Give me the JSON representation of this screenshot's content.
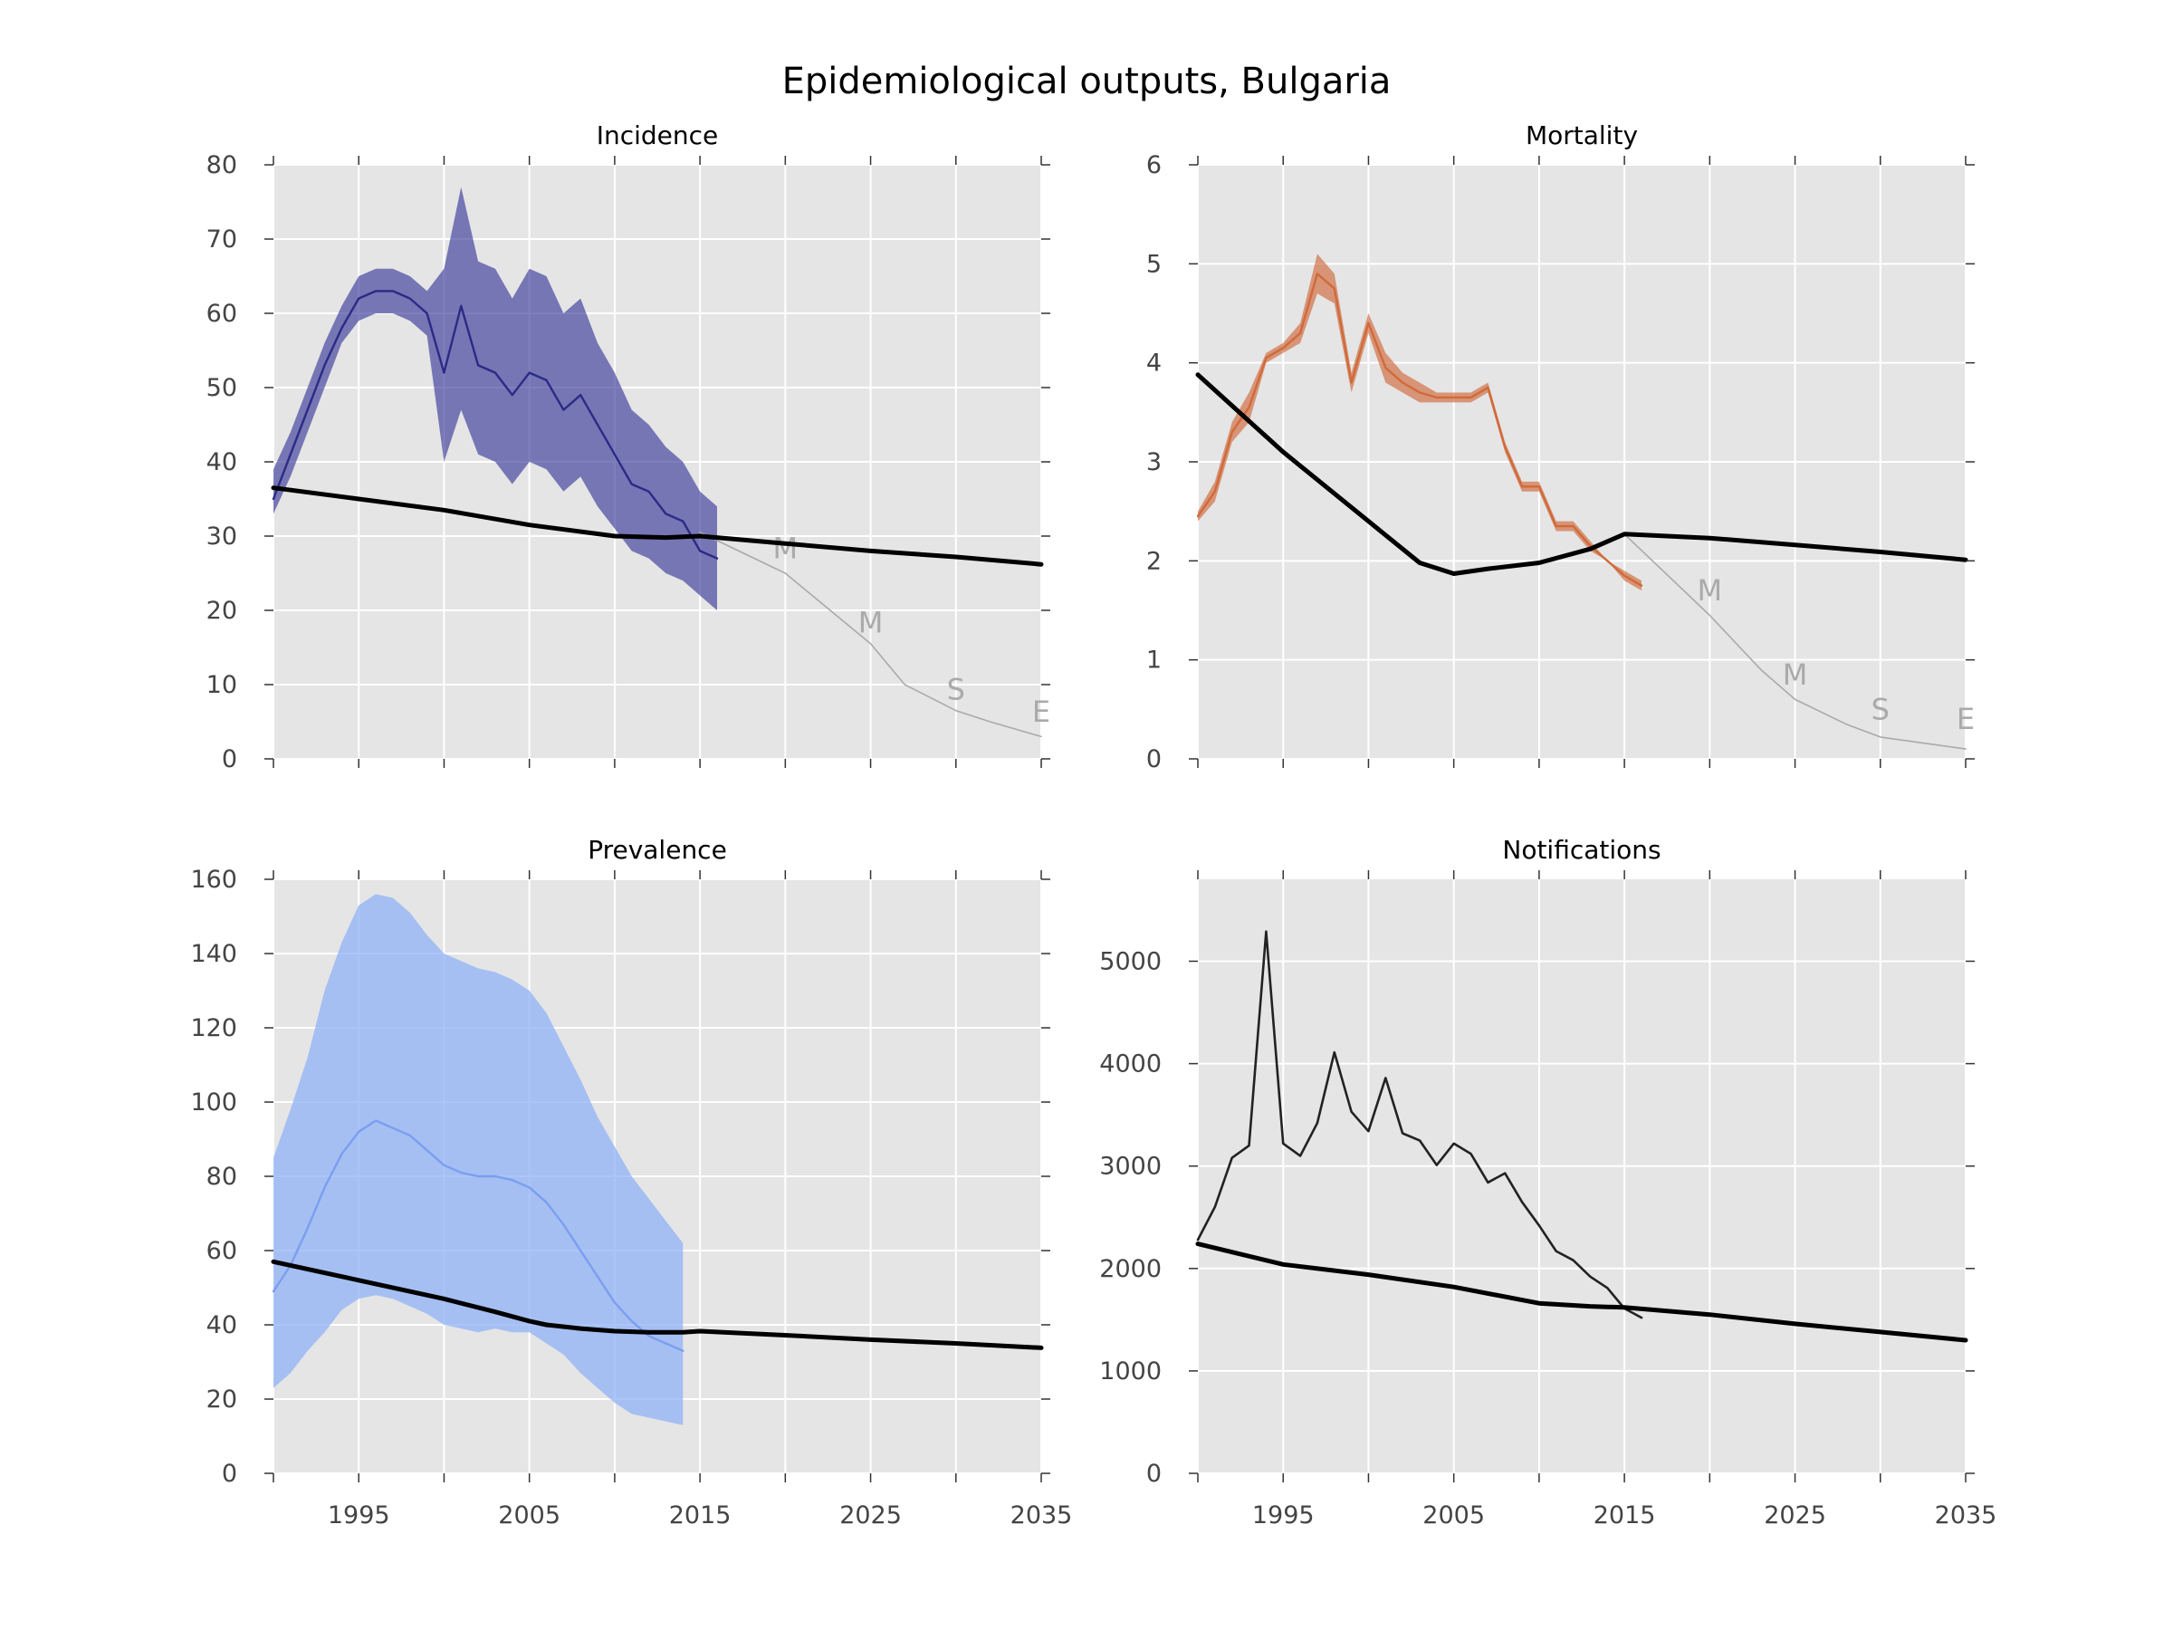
{
  "figure_title": "Epidemiological outputs, Bulgaria",
  "chart_data": [
    {
      "type": "line",
      "title": "Incidence",
      "xlim": [
        1990,
        2035
      ],
      "ylim": [
        0,
        80
      ],
      "xticks": [
        1990,
        1995,
        2000,
        2005,
        2010,
        2015,
        2020,
        2025,
        2030,
        2035
      ],
      "xtick_labels": [],
      "yticks": [
        0,
        10,
        20,
        30,
        40,
        50,
        60,
        70,
        80
      ],
      "ytick_labels": [
        "0",
        "10",
        "20",
        "30",
        "40",
        "50",
        "60",
        "70",
        "80"
      ],
      "grid": true,
      "background": "#e5e5e5",
      "colors": {
        "band": "#3b3b9b",
        "observed": "#2b2b85",
        "model": "#000000",
        "target": "#aaaaaa"
      },
      "band": {
        "x": [
          1990,
          1991,
          1992,
          1993,
          1994,
          1995,
          1996,
          1997,
          1998,
          1999,
          2000,
          2001,
          2002,
          2003,
          2004,
          2005,
          2006,
          2007,
          2008,
          2009,
          2010,
          2011,
          2012,
          2013,
          2014,
          2015,
          2016
        ],
        "low": [
          33,
          38,
          44,
          50,
          56,
          59,
          60,
          60,
          59,
          57,
          40,
          47,
          41,
          40,
          37,
          40,
          39,
          36,
          38,
          34,
          31,
          28,
          27,
          25,
          24,
          22,
          20
        ],
        "high": [
          39,
          44,
          50,
          56,
          61,
          65,
          66,
          66,
          65,
          63,
          66,
          77,
          67,
          66,
          62,
          66,
          65,
          60,
          62,
          56,
          52,
          47,
          45,
          42,
          40,
          36,
          34
        ]
      },
      "observed": {
        "x": [
          1990,
          1991,
          1992,
          1993,
          1994,
          1995,
          1996,
          1997,
          1998,
          1999,
          2000,
          2001,
          2002,
          2003,
          2004,
          2005,
          2006,
          2007,
          2008,
          2009,
          2010,
          2011,
          2012,
          2013,
          2014,
          2015,
          2016
        ],
        "y": [
          35,
          41,
          47,
          53,
          58,
          62,
          63,
          63,
          62,
          60,
          52,
          61,
          53,
          52,
          49,
          52,
          51,
          47,
          49,
          45,
          41,
          37,
          36,
          33,
          32,
          28,
          27
        ]
      },
      "model": {
        "x": [
          1990,
          1995,
          2000,
          2005,
          2010,
          2013,
          2015,
          2020,
          2025,
          2030,
          2035
        ],
        "y": [
          36.5,
          35,
          33.5,
          31.5,
          30,
          29.8,
          30,
          29,
          28,
          27.2,
          26.2
        ]
      },
      "target": {
        "x": [
          2015,
          2020,
          2025,
          2027,
          2030,
          2032,
          2035
        ],
        "y": [
          30.5,
          25,
          15.5,
          10,
          6.5,
          5,
          3
        ]
      },
      "milestones": [
        {
          "label": "M",
          "x": 2020,
          "y": 27
        },
        {
          "label": "M",
          "x": 2025,
          "y": 17
        },
        {
          "label": "S",
          "x": 2030,
          "y": 8
        },
        {
          "label": "E",
          "x": 2035,
          "y": 5
        }
      ]
    },
    {
      "type": "line",
      "title": "Mortality",
      "xlim": [
        1990,
        2035
      ],
      "ylim": [
        0,
        6
      ],
      "xticks": [
        1990,
        1995,
        2000,
        2005,
        2010,
        2015,
        2020,
        2025,
        2030,
        2035
      ],
      "xtick_labels": [],
      "yticks": [
        0,
        1,
        2,
        3,
        4,
        5,
        6
      ],
      "ytick_labels": [
        "0",
        "1",
        "2",
        "3",
        "4",
        "5",
        "6"
      ],
      "grid": true,
      "background": "#e5e5e5",
      "colors": {
        "band": "#d0683a",
        "observed": "#d06a3a",
        "model": "#000000",
        "target": "#aaaaaa"
      },
      "band": {
        "x": [
          1990,
          1991,
          1992,
          1993,
          1994,
          1995,
          1996,
          1997,
          1998,
          1999,
          2000,
          2001,
          2002,
          2003,
          2004,
          2005,
          2006,
          2007,
          2008,
          2009,
          2010,
          2011,
          2012,
          2013,
          2014,
          2015,
          2016
        ],
        "low": [
          2.4,
          2.6,
          3.2,
          3.4,
          4.0,
          4.1,
          4.2,
          4.7,
          4.6,
          3.7,
          4.3,
          3.8,
          3.7,
          3.6,
          3.6,
          3.6,
          3.6,
          3.7,
          3.1,
          2.7,
          2.7,
          2.3,
          2.3,
          2.1,
          2.0,
          1.8,
          1.7
        ],
        "high": [
          2.5,
          2.8,
          3.4,
          3.7,
          4.1,
          4.2,
          4.4,
          5.1,
          4.9,
          3.9,
          4.5,
          4.1,
          3.9,
          3.8,
          3.7,
          3.7,
          3.7,
          3.8,
          3.2,
          2.8,
          2.8,
          2.4,
          2.4,
          2.2,
          2.0,
          1.9,
          1.8
        ]
      },
      "observed": {
        "x": [
          1990,
          1991,
          1992,
          1993,
          1994,
          1995,
          1996,
          1997,
          1998,
          1999,
          2000,
          2001,
          2002,
          2003,
          2004,
          2005,
          2006,
          2007,
          2008,
          2009,
          2010,
          2011,
          2012,
          2013,
          2014,
          2015,
          2016
        ],
        "y": [
          2.45,
          2.7,
          3.3,
          3.55,
          4.05,
          4.15,
          4.3,
          4.9,
          4.75,
          3.8,
          4.4,
          3.95,
          3.8,
          3.7,
          3.65,
          3.65,
          3.65,
          3.75,
          3.15,
          2.75,
          2.75,
          2.35,
          2.35,
          2.15,
          2.0,
          1.85,
          1.75
        ]
      },
      "model": {
        "x": [
          1990,
          1995,
          2000,
          2003,
          2005,
          2007,
          2010,
          2013,
          2015,
          2020,
          2025,
          2030,
          2035
        ],
        "y": [
          3.88,
          3.1,
          2.4,
          1.98,
          1.87,
          1.92,
          1.98,
          2.12,
          2.27,
          2.23,
          2.16,
          2.09,
          2.01
        ]
      },
      "target": {
        "x": [
          2015,
          2020,
          2023,
          2025,
          2028,
          2030,
          2035
        ],
        "y": [
          2.27,
          1.45,
          0.9,
          0.6,
          0.35,
          0.22,
          0.1
        ]
      },
      "milestones": [
        {
          "label": "M",
          "x": 2020,
          "y": 1.6
        },
        {
          "label": "M",
          "x": 2025,
          "y": 0.75
        },
        {
          "label": "S",
          "x": 2030,
          "y": 0.4
        },
        {
          "label": "E",
          "x": 2035,
          "y": 0.3
        }
      ]
    },
    {
      "type": "line",
      "title": "Prevalence",
      "xlim": [
        1990,
        2035
      ],
      "ylim": [
        0,
        160
      ],
      "xticks": [
        1990,
        1995,
        2000,
        2005,
        2010,
        2015,
        2020,
        2025,
        2030,
        2035
      ],
      "xtick_labels": [
        "",
        "1995",
        "",
        "2005",
        "",
        "2015",
        "",
        "2025",
        "",
        "2035"
      ],
      "yticks": [
        0,
        20,
        40,
        60,
        80,
        100,
        120,
        140,
        160
      ],
      "ytick_labels": [
        "0",
        "20",
        "40",
        "60",
        "80",
        "100",
        "120",
        "140",
        "160"
      ],
      "grid": true,
      "background": "#e5e5e5",
      "colors": {
        "band": "#8fb1f5",
        "observed": "#7b9ef0",
        "model": "#000000"
      },
      "band": {
        "x": [
          1990,
          1991,
          1992,
          1993,
          1994,
          1995,
          1996,
          1997,
          1998,
          1999,
          2000,
          2001,
          2002,
          2003,
          2004,
          2005,
          2006,
          2007,
          2008,
          2009,
          2010,
          2011,
          2012,
          2013,
          2014
        ],
        "low": [
          23,
          27,
          33,
          38,
          44,
          47,
          48,
          47,
          45,
          43,
          40,
          39,
          38,
          39,
          38,
          38,
          35,
          32,
          27,
          23,
          19,
          16,
          15,
          14,
          13
        ],
        "high": [
          85,
          98,
          112,
          130,
          143,
          153,
          156,
          155,
          151,
          145,
          140,
          138,
          136,
          135,
          133,
          130,
          124,
          115,
          106,
          96,
          88,
          80,
          74,
          68,
          62
        ]
      },
      "observed": {
        "x": [
          1990,
          1991,
          1992,
          1993,
          1994,
          1995,
          1996,
          1997,
          1998,
          1999,
          2000,
          2001,
          2002,
          2003,
          2004,
          2005,
          2006,
          2007,
          2008,
          2009,
          2010,
          2011,
          2012,
          2013,
          2014
        ],
        "y": [
          49,
          56,
          66,
          77,
          86,
          92,
          95,
          93,
          91,
          87,
          83,
          81,
          80,
          80,
          79,
          77,
          73,
          67,
          60,
          53,
          46,
          41,
          37,
          35,
          33
        ]
      },
      "model": {
        "x": [
          1990,
          1995,
          2000,
          2003,
          2005,
          2006,
          2008,
          2010,
          2012,
          2014,
          2015,
          2020,
          2025,
          2030,
          2035
        ],
        "y": [
          57,
          52,
          47,
          43.5,
          41,
          40,
          39,
          38.3,
          38,
          38,
          38.3,
          37.2,
          36,
          35,
          33.8
        ]
      },
      "target": null,
      "milestones": []
    },
    {
      "type": "line",
      "title": "Notifications",
      "xlim": [
        1990,
        2035
      ],
      "ylim": [
        0,
        5800
      ],
      "xticks": [
        1990,
        1995,
        2000,
        2005,
        2010,
        2015,
        2020,
        2025,
        2030,
        2035
      ],
      "xtick_labels": [
        "",
        "1995",
        "",
        "2005",
        "",
        "2015",
        "",
        "2025",
        "",
        "2035"
      ],
      "yticks": [
        0,
        1000,
        2000,
        3000,
        4000,
        5000
      ],
      "ytick_labels": [
        "0",
        "1000",
        "2000",
        "3000",
        "4000",
        "5000"
      ],
      "grid": true,
      "background": "#e5e5e5",
      "colors": {
        "observed": "#222222",
        "model": "#000000"
      },
      "band": null,
      "observed": {
        "x": [
          1990,
          1991,
          1992,
          1993,
          1994,
          1995,
          1996,
          1997,
          1998,
          1999,
          2000,
          2001,
          2002,
          2003,
          2004,
          2005,
          2006,
          2007,
          2008,
          2009,
          2010,
          2011,
          2012,
          2013,
          2014,
          2015,
          2016
        ],
        "y": [
          2280,
          2600,
          3080,
          3200,
          5290,
          3220,
          3100,
          3420,
          4110,
          3530,
          3340,
          3860,
          3320,
          3250,
          3010,
          3220,
          3120,
          2840,
          2930,
          2650,
          2420,
          2170,
          2080,
          1920,
          1810,
          1610,
          1520
        ]
      },
      "model": {
        "x": [
          1990,
          1995,
          2000,
          2005,
          2010,
          2013,
          2015,
          2020,
          2025,
          2030,
          2035
        ],
        "y": [
          2240,
          2040,
          1940,
          1820,
          1660,
          1630,
          1620,
          1550,
          1460,
          1380,
          1300
        ]
      },
      "target": null,
      "milestones": []
    }
  ]
}
